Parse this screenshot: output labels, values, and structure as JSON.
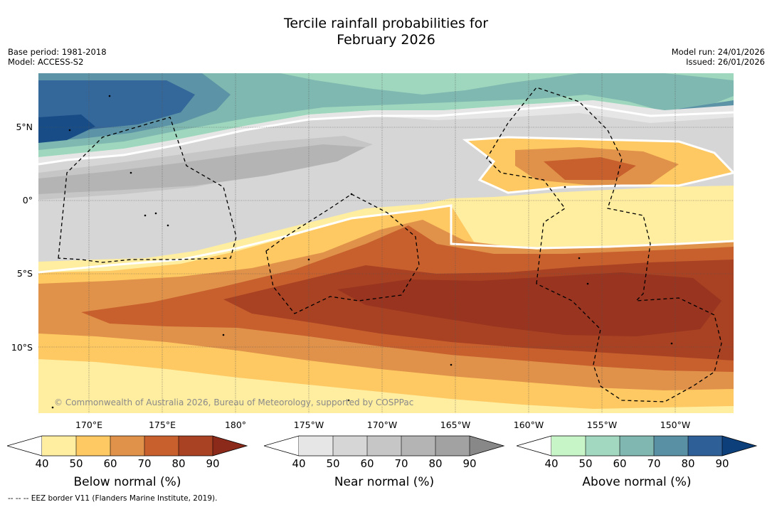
{
  "title_line1": "Tercile rainfall probabilities for",
  "title_line2": "February 2026",
  "base_period": "Base period: 1981-2018",
  "model": "Model: ACCESS-S2",
  "model_run": "Model run: 24/01/2026",
  "issued": "Issued: 26/01/2026",
  "copyright": "© Commonwealth of Australia 2026, Bureau of Meteorology, supported by COSPPac",
  "footnote": "--  --  -- EEZ border V11 (Flanders Marine Institute, 2019).",
  "latitude_labels": [
    "5°N",
    "0°",
    "5°S",
    "10°S"
  ],
  "longitude_labels": [
    "170°E",
    "175°E",
    "180°",
    "175°W",
    "170°W",
    "165°W",
    "160°W",
    "155°W",
    "150°W"
  ],
  "colorbars": [
    {
      "title": "Below normal (%)",
      "ticks": [
        "40",
        "50",
        "60",
        "70",
        "80",
        "90"
      ],
      "colors": [
        "#ffffff",
        "#ffeda0",
        "#fec962",
        "#e0924a",
        "#c8602e",
        "#a84223",
        "#8b2a1a"
      ]
    },
    {
      "title": "Near normal (%)",
      "ticks": [
        "40",
        "50",
        "60",
        "70",
        "80",
        "90"
      ],
      "colors": [
        "#ffffff",
        "#e6e6e6",
        "#d6d6d6",
        "#c6c6c6",
        "#b4b4b4",
        "#a2a2a2",
        "#888888"
      ]
    },
    {
      "title": "Above normal (%)",
      "ticks": [
        "40",
        "50",
        "60",
        "70",
        "80",
        "90"
      ],
      "colors": [
        "#ffffff",
        "#c8f5c8",
        "#a2d8c0",
        "#80b7b0",
        "#5a90a4",
        "#2e5f96",
        "#0d3f7a"
      ]
    }
  ],
  "palette": {
    "map_background": "#ffffff",
    "below_40_50": "#ffeda0",
    "below_50_60": "#fec962",
    "below_60_70": "#e0924a",
    "below_70_80": "#c8602e",
    "below_80_90": "#a84223",
    "below_90_plus": "#98341f",
    "near_40_50": "#e6e6e6",
    "near_50_60": "#d6d6d6",
    "near_60_70": "#c6c6c6",
    "near_70_80": "#b4b4b4",
    "near_80_90": "#a6a6a6",
    "above_40_50": "#c8f5c8",
    "above_50_60": "#9fd6be",
    "above_60_70": "#7fb8b0",
    "above_70_80": "#5c93a6",
    "above_80_90": "#34679a",
    "above_90_plus": "#174c86"
  }
}
